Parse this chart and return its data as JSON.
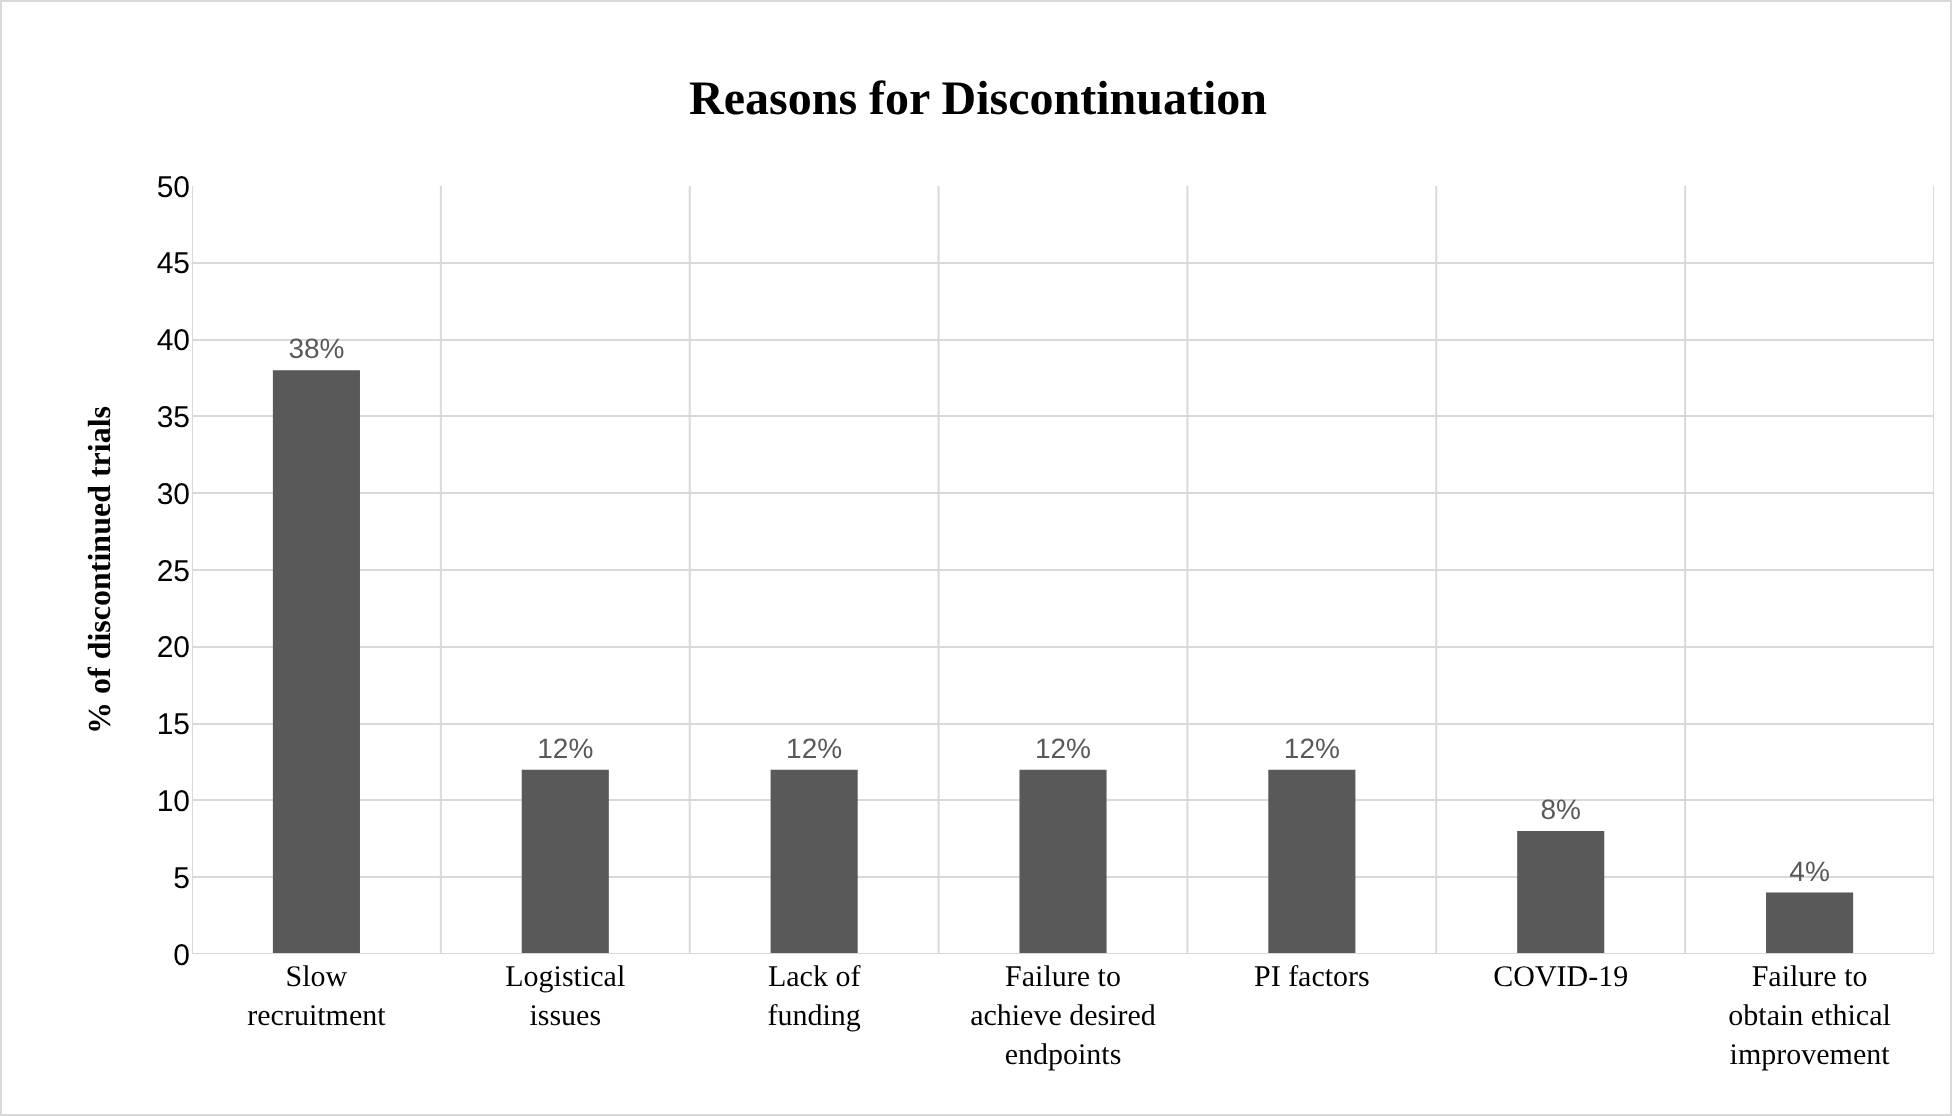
{
  "chart_data": {
    "type": "bar",
    "title": "Reasons for Discontinuation",
    "ylabel": "% of discontinued trials",
    "categories": [
      "Slow recruitment",
      "Logistical issues",
      "Lack of funding",
      "Failure to achieve desired endpoints",
      "PI factors",
      "COVID-19",
      "Failure to obtain ethical improvement"
    ],
    "values": [
      38,
      12,
      12,
      12,
      12,
      8,
      4
    ],
    "value_labels": [
      "38%",
      "12%",
      "12%",
      "12%",
      "12%",
      "8%",
      "4%"
    ],
    "color": "#595959",
    "ylim": [
      0,
      50
    ],
    "yticks": [
      0,
      5,
      10,
      15,
      20,
      25,
      30,
      35,
      40,
      45,
      50
    ],
    "grid": true
  }
}
